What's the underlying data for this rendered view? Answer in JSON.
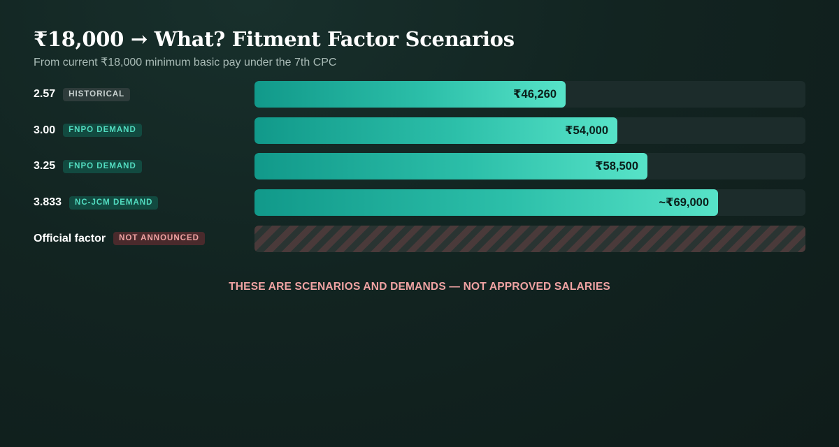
{
  "chart_data": {
    "type": "bar",
    "orientation": "horizontal",
    "title": "₹18,000 → What? Fitment Factor Scenarios",
    "subtitle": "From current ₹18,000 minimum basic pay under the 7th CPC",
    "xlim": [
      0,
      82000
    ],
    "rows": [
      {
        "factor": "2.57",
        "tag": "HISTORICAL",
        "tag_kind": "hist",
        "value": 46260,
        "value_label": "₹46,260"
      },
      {
        "factor": "3.00",
        "tag": "FNPO DEMAND",
        "tag_kind": "demand",
        "value": 54000,
        "value_label": "₹54,000"
      },
      {
        "factor": "3.25",
        "tag": "FNPO DEMAND",
        "tag_kind": "demand",
        "value": 58500,
        "value_label": "₹58,500"
      },
      {
        "factor": "3.833",
        "tag": "NC-JCM DEMAND",
        "tag_kind": "demand",
        "value": 69000,
        "value_label": "~₹69,000"
      }
    ],
    "official": {
      "factor": "Official factor",
      "tag": "NOT ANNOUNCED",
      "tag_kind": "pending"
    },
    "note": "THESE ARE SCENARIOS AND DEMANDS — NOT APPROVED SALARIES",
    "colors": {
      "bar_start": "#11998a",
      "bar_end": "#57e3c8",
      "track": "#1c2c2b",
      "note": "#f0a3a3"
    }
  }
}
